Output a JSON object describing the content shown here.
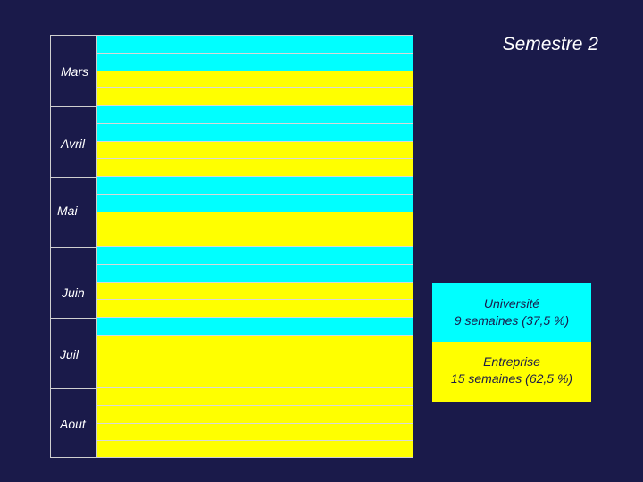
{
  "title": "Semestre 2",
  "months": [
    "Mars",
    "Avril",
    "Mai",
    "Juin",
    "Juil",
    "Aout"
  ],
  "colors": {
    "background": "#1a1a4a",
    "universite": "#00ffff",
    "entreprise": "#ffff00",
    "text": "#ffffff"
  },
  "weeks": [
    "U",
    "U",
    "E",
    "E",
    "U",
    "U",
    "E",
    "E",
    "U",
    "U",
    "E",
    "E",
    "U",
    "U",
    "E",
    "E",
    "U",
    "E",
    "E",
    "E",
    "E",
    "E",
    "E",
    "E"
  ],
  "legend": {
    "universite": {
      "line1": "Université",
      "line2": "9 semaines (37,5 %)"
    },
    "entreprise": {
      "line1": "Entreprise",
      "line2": "15 semaines (62,5 %)"
    }
  }
}
